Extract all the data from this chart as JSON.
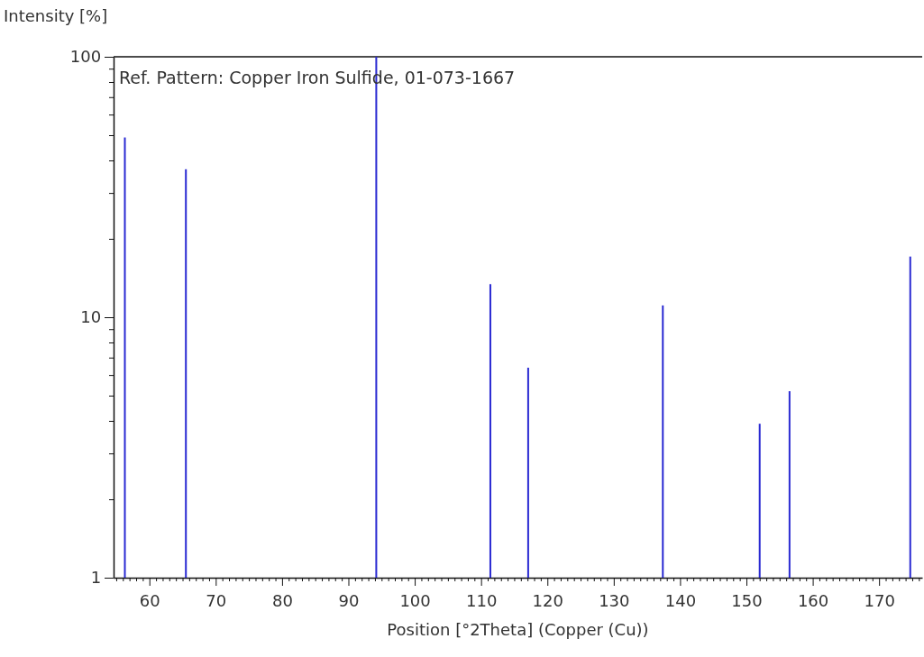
{
  "chart_data": {
    "type": "bar",
    "xlabel": "Position [°2Theta] (Copper (Cu))",
    "ylabel": "Intensity [%]",
    "log": true,
    "grid": false,
    "annotations": [
      "Ref. Pattern: Copper Iron Sulfide, 01-073-1667"
    ],
    "x": [
      56.3,
      65.5,
      94.2,
      111.4,
      117.1,
      137.4,
      152.0,
      156.5,
      174.7
    ],
    "series": [
      {
        "color": "#2a2ad2",
        "values": [
          49,
          37,
          100,
          13.4,
          6.4,
          11.1,
          3.9,
          5.2,
          17.1
        ]
      }
    ],
    "xlim": [
      54.6,
      176.5
    ],
    "ylim": [
      1,
      100
    ],
    "yticks": [
      1,
      {
        "value": 2,
        "label": null
      },
      {
        "value": 3,
        "label": null
      },
      {
        "value": 4,
        "label": null
      },
      {
        "value": 5,
        "label": null
      },
      {
        "value": 6,
        "label": null
      },
      {
        "value": 7,
        "label": null
      },
      {
        "value": 8,
        "label": null
      },
      {
        "value": 9,
        "label": null
      },
      10,
      {
        "value": 20,
        "label": null
      },
      {
        "value": 30,
        "label": null
      },
      {
        "value": 40,
        "label": null
      },
      {
        "value": 50,
        "label": null
      },
      {
        "value": 60,
        "label": null
      },
      {
        "value": 70,
        "label": null
      },
      {
        "value": 80,
        "label": null
      },
      {
        "value": 90,
        "label": null
      },
      100
    ],
    "xticks": [
      {
        "value": 55,
        "label": null
      },
      {
        "value": 56,
        "label": null
      },
      {
        "value": 57,
        "label": null
      },
      {
        "value": 58,
        "label": null
      },
      {
        "value": 59,
        "label": null
      },
      60,
      {
        "value": 61,
        "label": null
      },
      {
        "value": 62,
        "label": null
      },
      {
        "value": 63,
        "label": null
      },
      {
        "value": 64,
        "label": null
      },
      {
        "value": 65,
        "label": null
      },
      {
        "value": 66,
        "label": null
      },
      {
        "value": 67,
        "label": null
      },
      {
        "value": 68,
        "label": null
      },
      {
        "value": 69,
        "label": null
      },
      70,
      {
        "value": 71,
        "label": null
      },
      {
        "value": 72,
        "label": null
      },
      {
        "value": 73,
        "label": null
      },
      {
        "value": 74,
        "label": null
      },
      {
        "value": 75,
        "label": null
      },
      {
        "value": 76,
        "label": null
      },
      {
        "value": 77,
        "label": null
      },
      {
        "value": 78,
        "label": null
      },
      {
        "value": 79,
        "label": null
      },
      80,
      {
        "value": 81,
        "label": null
      },
      {
        "value": 82,
        "label": null
      },
      {
        "value": 83,
        "label": null
      },
      {
        "value": 84,
        "label": null
      },
      {
        "value": 85,
        "label": null
      },
      {
        "value": 86,
        "label": null
      },
      {
        "value": 87,
        "label": null
      },
      {
        "value": 88,
        "label": null
      },
      {
        "value": 89,
        "label": null
      },
      90,
      {
        "value": 91,
        "label": null
      },
      {
        "value": 92,
        "label": null
      },
      {
        "value": 93,
        "label": null
      },
      {
        "value": 94,
        "label": null
      },
      {
        "value": 95,
        "label": null
      },
      {
        "value": 96,
        "label": null
      },
      {
        "value": 97,
        "label": null
      },
      {
        "value": 98,
        "label": null
      },
      {
        "value": 99,
        "label": null
      },
      100,
      {
        "value": 101,
        "label": null
      },
      {
        "value": 102,
        "label": null
      },
      {
        "value": 103,
        "label": null
      },
      {
        "value": 104,
        "label": null
      },
      {
        "value": 105,
        "label": null
      },
      {
        "value": 106,
        "label": null
      },
      {
        "value": 107,
        "label": null
      },
      {
        "value": 108,
        "label": null
      },
      {
        "value": 109,
        "label": null
      },
      110,
      {
        "value": 111,
        "label": null
      },
      {
        "value": 112,
        "label": null
      },
      {
        "value": 113,
        "label": null
      },
      {
        "value": 114,
        "label": null
      },
      {
        "value": 115,
        "label": null
      },
      {
        "value": 116,
        "label": null
      },
      {
        "value": 117,
        "label": null
      },
      {
        "value": 118,
        "label": null
      },
      {
        "value": 119,
        "label": null
      },
      120,
      {
        "value": 121,
        "label": null
      },
      {
        "value": 122,
        "label": null
      },
      {
        "value": 123,
        "label": null
      },
      {
        "value": 124,
        "label": null
      },
      {
        "value": 125,
        "label": null
      },
      {
        "value": 126,
        "label": null
      },
      {
        "value": 127,
        "label": null
      },
      {
        "value": 128,
        "label": null
      },
      {
        "value": 129,
        "label": null
      },
      130,
      {
        "value": 131,
        "label": null
      },
      {
        "value": 132,
        "label": null
      },
      {
        "value": 133,
        "label": null
      },
      {
        "value": 134,
        "label": null
      },
      {
        "value": 135,
        "label": null
      },
      {
        "value": 136,
        "label": null
      },
      {
        "value": 137,
        "label": null
      },
      {
        "value": 138,
        "label": null
      },
      {
        "value": 139,
        "label": null
      },
      140,
      {
        "value": 141,
        "label": null
      },
      {
        "value": 142,
        "label": null
      },
      {
        "value": 143,
        "label": null
      },
      {
        "value": 144,
        "label": null
      },
      {
        "value": 145,
        "label": null
      },
      {
        "value": 146,
        "label": null
      },
      {
        "value": 147,
        "label": null
      },
      {
        "value": 148,
        "label": null
      },
      {
        "value": 149,
        "label": null
      },
      150,
      {
        "value": 151,
        "label": null
      },
      {
        "value": 152,
        "label": null
      },
      {
        "value": 153,
        "label": null
      },
      {
        "value": 154,
        "label": null
      },
      {
        "value": 155,
        "label": null
      },
      {
        "value": 156,
        "label": null
      },
      {
        "value": 157,
        "label": null
      },
      {
        "value": 158,
        "label": null
      },
      {
        "value": 159,
        "label": null
      },
      160,
      {
        "value": 161,
        "label": null
      },
      {
        "value": 162,
        "label": null
      },
      {
        "value": 163,
        "label": null
      },
      {
        "value": 164,
        "label": null
      },
      {
        "value": 165,
        "label": null
      },
      {
        "value": 166,
        "label": null
      },
      {
        "value": 167,
        "label": null
      },
      {
        "value": 168,
        "label": null
      },
      {
        "value": 169,
        "label": null
      },
      170,
      {
        "value": 171,
        "label": null
      },
      {
        "value": 172,
        "label": null
      },
      {
        "value": 173,
        "label": null
      },
      {
        "value": 174,
        "label": null
      },
      {
        "value": 175,
        "label": null
      },
      {
        "value": 176,
        "label": null
      }
    ]
  }
}
